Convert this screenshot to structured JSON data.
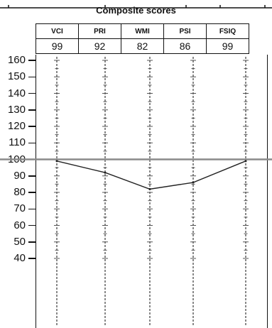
{
  "title": "Composite scores",
  "chart_data": {
    "type": "line",
    "categories": [
      "VCI",
      "PRI",
      "WMI",
      "PSI",
      "FSIQ"
    ],
    "values": [
      99,
      92,
      82,
      86,
      99
    ],
    "yticks": [
      160,
      150,
      140,
      130,
      120,
      110,
      100,
      90,
      80,
      70,
      60,
      50,
      40
    ],
    "ylim": [
      40,
      160
    ],
    "reference_line": 100,
    "grid": "dashed vertical lines per category",
    "colors": {
      "line": "#222222",
      "reference": "#8a8a8a",
      "grid": "#555555"
    }
  }
}
